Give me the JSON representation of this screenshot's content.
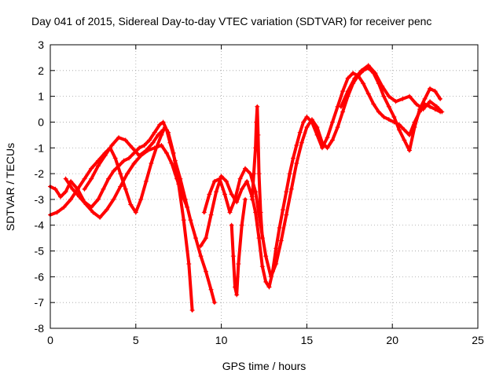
{
  "chart_data": {
    "type": "scatter",
    "title": "Day 041 of 2015, Sidereal Day-to-day VTEC variation (SDTVAR) for receiver penc",
    "xlabel": "GPS time / hours",
    "ylabel": "SDTVAR / TECUs",
    "xlim": [
      0,
      25
    ],
    "ylim": [
      -8,
      3
    ],
    "xticks": [
      0,
      5,
      10,
      15,
      20,
      25
    ],
    "yticks": [
      -8,
      -7,
      -6,
      -5,
      -4,
      -3,
      -2,
      -1,
      0,
      1,
      2,
      3
    ],
    "grid": true,
    "legend": "none",
    "marker": "+",
    "color": "#ff0000",
    "series": [
      {
        "x": [
          0,
          0.3,
          0.6,
          0.9,
          1.2,
          1.6,
          2.0,
          2.4,
          2.8,
          3.1,
          3.4,
          3.7,
          4.0,
          4.3,
          4.6,
          4.9,
          5.2,
          5.5,
          5.8,
          6.1,
          6.4,
          6.6,
          6.8,
          7.0,
          7.3,
          7.6,
          7.9,
          8.2,
          8.5,
          8.8,
          9.1,
          9.4,
          9.6
        ],
        "y": [
          -2.5,
          -2.6,
          -2.9,
          -2.7,
          -2.3,
          -2.6,
          -3.1,
          -3.3,
          -3.0,
          -2.6,
          -2.2,
          -1.9,
          -1.7,
          -1.5,
          -1.4,
          -1.2,
          -1.0,
          -0.9,
          -0.7,
          -0.4,
          -0.1,
          0.0,
          -0.3,
          -0.8,
          -1.5,
          -2.2,
          -3.0,
          -3.8,
          -4.5,
          -5.2,
          -5.8,
          -6.5,
          -7.0
        ]
      },
      {
        "x": [
          0,
          0.4,
          0.8,
          1.2,
          1.6,
          2.0,
          2.4,
          2.8,
          3.2,
          3.5,
          3.8,
          4.1,
          4.4,
          4.7,
          5.0,
          5.3,
          5.6,
          5.9,
          6.2,
          6.5,
          6.7,
          6.9,
          7.2,
          7.5,
          7.8,
          8.1,
          8.3
        ],
        "y": [
          -3.6,
          -3.5,
          -3.3,
          -3.0,
          -2.6,
          -2.2,
          -1.8,
          -1.5,
          -1.2,
          -1.0,
          -1.4,
          -2.0,
          -2.6,
          -3.2,
          -3.5,
          -3.0,
          -2.3,
          -1.6,
          -1.0,
          -0.5,
          -0.2,
          -0.4,
          -1.2,
          -2.4,
          -3.8,
          -5.5,
          -7.3
        ]
      },
      {
        "x": [
          0.9,
          1.3,
          1.7,
          2.1,
          2.5,
          2.9,
          3.3,
          3.7,
          4.1,
          4.5,
          4.9,
          5.3,
          5.7,
          6.1,
          6.5,
          6.8,
          7.1,
          7.4,
          7.7,
          8.0
        ],
        "y": [
          -2.2,
          -2.6,
          -2.9,
          -3.2,
          -3.5,
          -3.7,
          -3.4,
          -3.0,
          -2.5,
          -2.0,
          -1.6,
          -1.3,
          -1.1,
          -1.0,
          -0.9,
          -1.2,
          -1.6,
          -2.2,
          -2.8,
          -3.3
        ]
      },
      {
        "x": [
          2.0,
          2.4,
          2.8,
          3.2,
          3.6,
          4.0,
          4.4,
          4.8,
          5.2,
          5.6,
          6.0,
          6.3,
          6.6
        ],
        "y": [
          -2.6,
          -2.2,
          -1.7,
          -1.3,
          -0.9,
          -0.6,
          -0.7,
          -1.0,
          -1.3,
          -1.1,
          -0.8,
          -0.5,
          -0.3
        ]
      },
      {
        "x": [
          8.8,
          9.1,
          9.4,
          9.7,
          10.0,
          10.3,
          10.6,
          10.9,
          11.2,
          11.5,
          11.8,
          12.0,
          12.2,
          12.4,
          12.6,
          12.8,
          13.0,
          13.2,
          13.4,
          13.6,
          13.8,
          14.0,
          14.2,
          14.4,
          14.6,
          14.8,
          15.0,
          15.3,
          15.6,
          15.9,
          16.2,
          16.5,
          16.8,
          17.1,
          17.4,
          17.7,
          18.0,
          18.3,
          18.6,
          18.9,
          19.2,
          19.5,
          19.8,
          20.1,
          20.4,
          20.7,
          21.0,
          21.3,
          21.6,
          21.9,
          22.2,
          22.5,
          22.8
        ],
        "y": [
          -4.8,
          -4.5,
          -3.6,
          -2.7,
          -2.1,
          -2.3,
          -2.8,
          -3.1,
          -2.6,
          -2.3,
          -2.9,
          -3.5,
          -4.5,
          -5.6,
          -6.2,
          -6.4,
          -5.8,
          -4.9,
          -4.1,
          -3.4,
          -2.7,
          -2.0,
          -1.4,
          -0.9,
          -0.4,
          0.0,
          0.2,
          0.0,
          -0.5,
          -1.0,
          -0.6,
          0.0,
          0.6,
          1.2,
          1.7,
          1.9,
          1.8,
          1.5,
          1.1,
          0.7,
          0.4,
          0.2,
          0.1,
          0.0,
          -0.1,
          -0.3,
          -0.5,
          0.0,
          0.4,
          0.7,
          0.6,
          0.5,
          0.4
        ]
      },
      {
        "x": [
          9.0,
          9.3,
          9.6,
          9.9,
          10.2,
          10.5,
          10.8,
          11.1,
          11.4,
          11.7,
          12.0,
          12.3,
          12.6,
          12.9,
          13.2,
          13.5,
          13.8,
          14.1,
          14.4,
          14.7,
          15.0,
          15.3,
          15.6,
          15.9,
          16.2,
          16.5,
          16.8,
          17.1,
          17.4,
          17.7,
          18.0,
          18.3,
          18.6,
          18.9,
          19.2,
          19.5,
          19.8,
          20.1,
          20.4,
          20.7,
          21.0,
          21.3,
          21.6,
          21.9,
          22.2,
          22.5,
          22.8
        ],
        "y": [
          -3.5,
          -2.8,
          -2.3,
          -2.2,
          -2.8,
          -3.5,
          -3.0,
          -2.2,
          -1.8,
          -2.0,
          -2.7,
          -4.0,
          -5.2,
          -6.0,
          -5.5,
          -4.6,
          -3.6,
          -2.6,
          -1.6,
          -0.8,
          -0.2,
          0.1,
          -0.2,
          -0.8,
          -1.0,
          -0.7,
          -0.2,
          0.4,
          1.0,
          1.5,
          1.8,
          2.0,
          2.1,
          1.9,
          1.5,
          1.0,
          0.6,
          0.2,
          -0.3,
          -0.7,
          -1.1,
          -0.2,
          0.5,
          0.9,
          1.3,
          1.2,
          0.9
        ]
      },
      {
        "x": [
          17.0,
          17.4,
          17.8,
          18.2,
          18.6,
          19.0,
          19.4,
          19.8,
          20.2,
          20.6,
          21.0,
          21.4,
          21.8,
          22.2,
          22.6,
          22.9
        ],
        "y": [
          0.6,
          1.2,
          1.7,
          2.0,
          2.2,
          1.9,
          1.4,
          1.0,
          0.8,
          0.9,
          1.0,
          0.7,
          0.5,
          0.8,
          0.6,
          0.4
        ]
      },
      {
        "x": [
          11.8,
          11.9,
          12.0,
          12.05,
          12.1,
          12.15,
          12.2,
          12.3,
          12.4
        ],
        "y": [
          -3.0,
          -2.0,
          -1.0,
          0.0,
          0.6,
          -0.5,
          -2.0,
          -3.5,
          -4.5
        ]
      },
      {
        "x": [
          10.6,
          10.7,
          10.8,
          10.9,
          11.0,
          11.2,
          11.4
        ],
        "y": [
          -4.0,
          -5.2,
          -6.4,
          -6.7,
          -5.5,
          -4.0,
          -3.0
        ]
      }
    ]
  }
}
